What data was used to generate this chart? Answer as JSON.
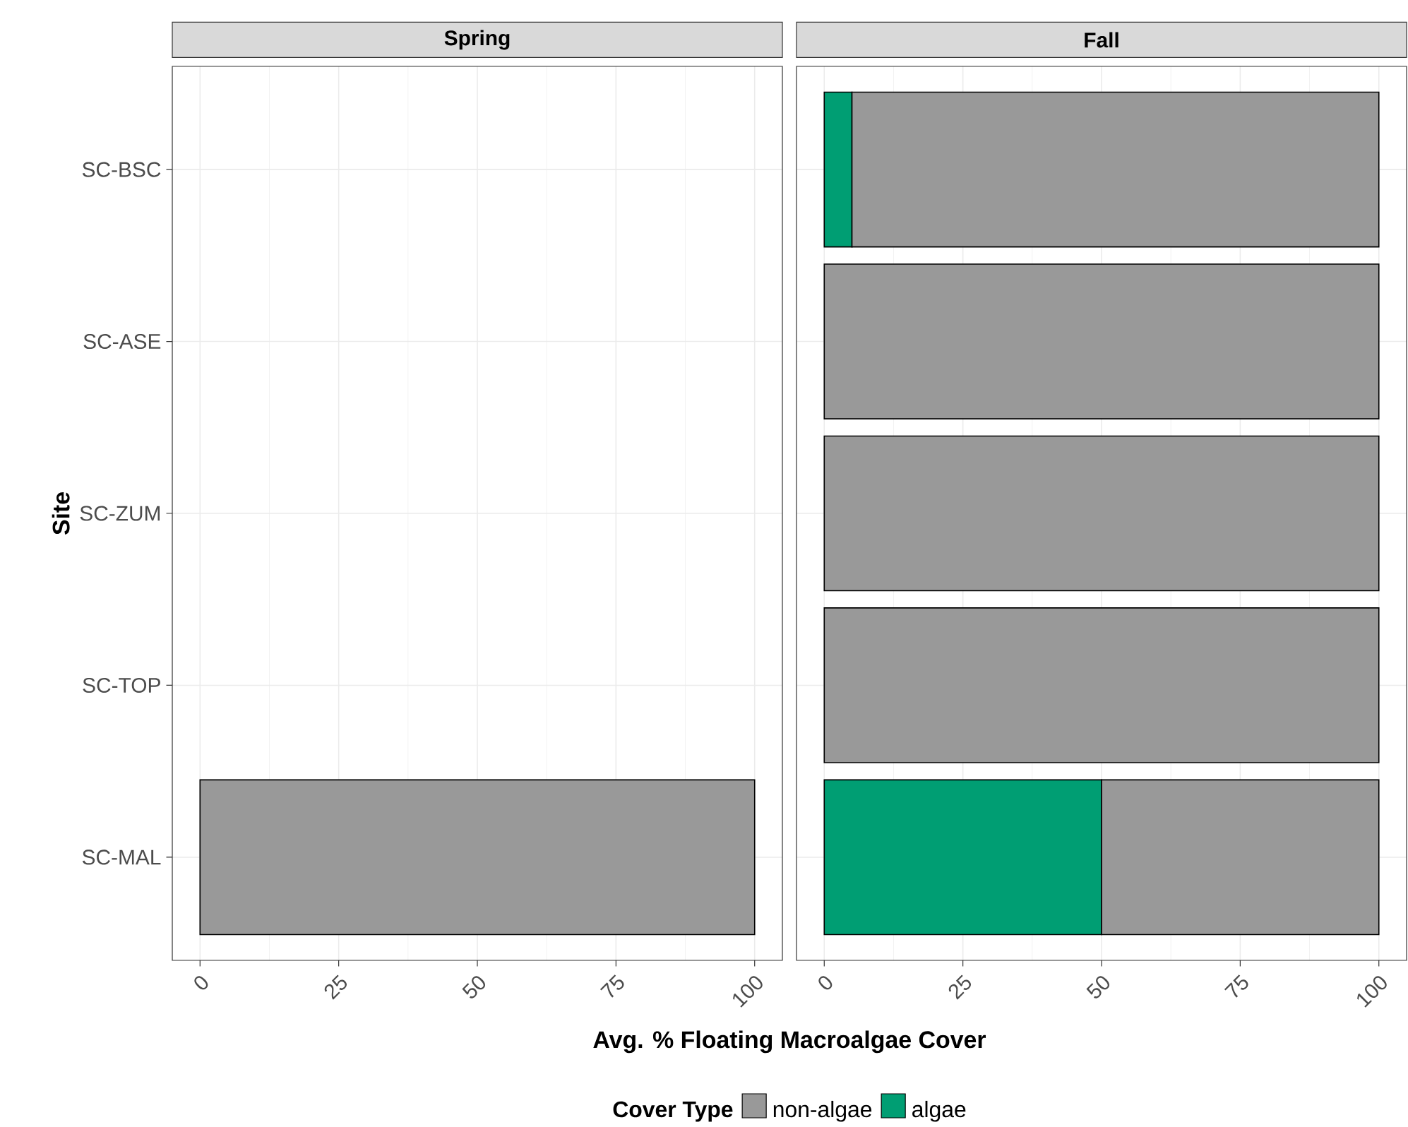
{
  "chart_data": [
    {
      "type": "bar",
      "title": "Spring",
      "orientation": "horizontal",
      "stacked": true,
      "ylabel": "Site",
      "xlabel": "Avg. % Floating Macroalgae Cover",
      "categories": [
        "SC-BSC",
        "SC-ASE",
        "SC-ZUM",
        "SC-TOP",
        "SC-MAL"
      ],
      "series": [
        {
          "color": "#999999",
          "values": [
            null,
            null,
            null,
            null,
            100
          ]
        }
      ],
      "xlim": [
        -5,
        105
      ],
      "xticks": [
        0,
        25,
        50,
        75,
        100
      ],
      "grid": true
    },
    {
      "type": "bar",
      "title": "Fall",
      "orientation": "horizontal",
      "stacked": true,
      "legend": "bottom",
      "legend_title": "Cover Type",
      "categories": [
        null,
        null,
        null,
        null,
        null
      ],
      "series": [
        {
          "name": "algae",
          "color": "#009E73",
          "values": [
            5,
            null,
            null,
            null,
            50
          ]
        },
        {
          "name": "non-algae",
          "color": "#999999",
          "values": [
            95,
            100,
            100,
            100,
            50
          ]
        }
      ],
      "xlim": [
        -5,
        105
      ],
      "xticks": [
        0,
        25,
        50,
        75,
        100
      ],
      "grid": true,
      "tick_labels": "x"
    }
  ]
}
